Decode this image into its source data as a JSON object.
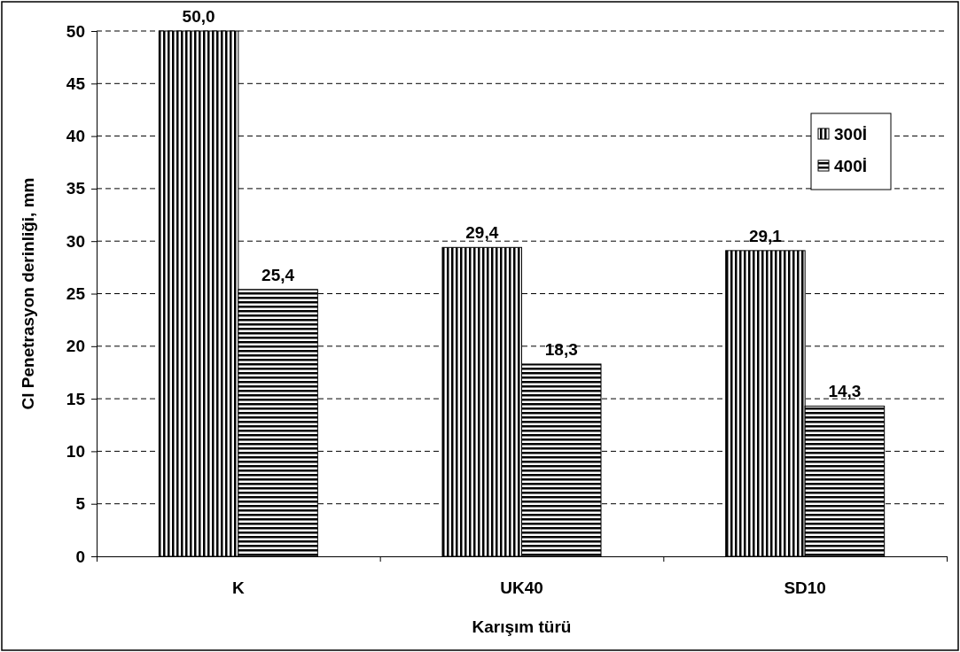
{
  "chart_data": {
    "type": "bar",
    "xlabel": "Karışım türü",
    "ylabel": "Cl Penetrasyon derinliği, mm",
    "categories": [
      "K",
      "UK40",
      "SD10"
    ],
    "series": [
      {
        "name": "300İ",
        "color": "#000000",
        "values": [
          50.0,
          29.4,
          29.1
        ],
        "value_labels": [
          "50,0",
          "29,4",
          "29,1"
        ]
      },
      {
        "name": "400İ",
        "color": "#000000",
        "values": [
          25.4,
          18.3,
          14.3
        ],
        "value_labels": [
          "25,4",
          "18,3",
          "14,3"
        ]
      }
    ],
    "ylim": [
      0,
      50
    ],
    "yticks": [
      0,
      5,
      10,
      15,
      20,
      25,
      30,
      35,
      40,
      45,
      50
    ],
    "grid": "y",
    "legend": "top right"
  }
}
